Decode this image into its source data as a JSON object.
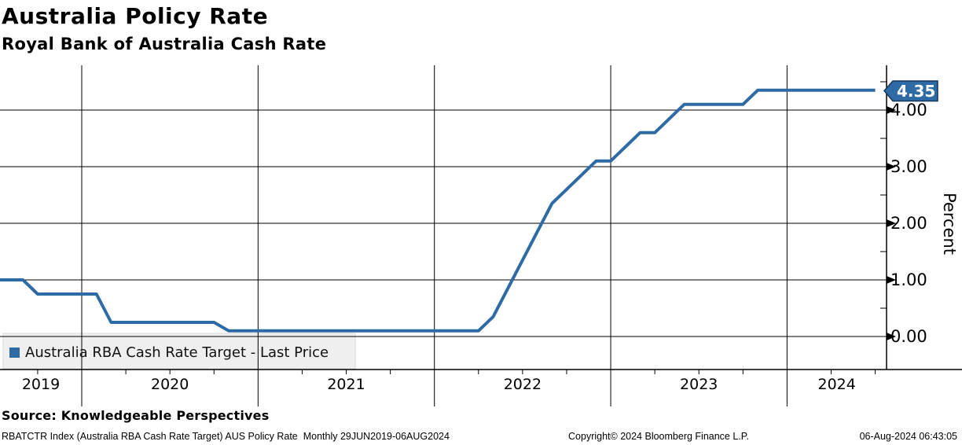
{
  "header": {
    "title": "Australia Policy Rate",
    "subtitle": "Royal Bank of Australia Cash Rate"
  },
  "chart_data": {
    "type": "line",
    "title": "Australia Policy Rate",
    "subtitle": "Royal Bank of Australia Cash Rate",
    "ylabel": "Percent",
    "ylim": [
      -0.6,
      4.8
    ],
    "grid": true,
    "legend_position": "bottom-left",
    "legend": "Australia RBA Cash Rate Target - Last Price",
    "last_price_label": "4.35",
    "last_price": 4.35,
    "y_ticks": [
      "0.00",
      "1.00",
      "2.00",
      "3.00",
      "4.00"
    ],
    "y_tick_values": [
      0,
      1,
      2,
      3,
      4
    ],
    "x_tick_labels": [
      "2019",
      "2020",
      "2021",
      "2022",
      "2023",
      "2024"
    ],
    "series": [
      {
        "name": "Australia RBA Cash Rate Target",
        "freq": "monthly",
        "months": [
          "2019-07",
          "2019-08",
          "2019-09",
          "2019-10",
          "2019-11",
          "2019-12",
          "2020-01",
          "2020-02",
          "2020-03",
          "2020-04",
          "2020-05",
          "2020-06",
          "2020-07",
          "2020-08",
          "2020-09",
          "2020-10",
          "2020-11",
          "2020-12",
          "2021-01",
          "2021-02",
          "2021-03",
          "2021-04",
          "2021-05",
          "2021-06",
          "2021-07",
          "2021-08",
          "2021-09",
          "2021-10",
          "2021-11",
          "2021-12",
          "2022-01",
          "2022-02",
          "2022-03",
          "2022-04",
          "2022-05",
          "2022-06",
          "2022-07",
          "2022-08",
          "2022-09",
          "2022-10",
          "2022-11",
          "2022-12",
          "2023-01",
          "2023-02",
          "2023-03",
          "2023-04",
          "2023-05",
          "2023-06",
          "2023-07",
          "2023-08",
          "2023-09",
          "2023-10",
          "2023-11",
          "2023-12",
          "2024-01",
          "2024-02",
          "2024-03",
          "2024-04",
          "2024-05",
          "2024-06",
          "2024-07"
        ],
        "values": [
          1.0,
          1.0,
          1.0,
          0.75,
          0.75,
          0.75,
          0.75,
          0.75,
          0.25,
          0.25,
          0.25,
          0.25,
          0.25,
          0.25,
          0.25,
          0.25,
          0.1,
          0.1,
          0.1,
          0.1,
          0.1,
          0.1,
          0.1,
          0.1,
          0.1,
          0.1,
          0.1,
          0.1,
          0.1,
          0.1,
          0.1,
          0.1,
          0.1,
          0.1,
          0.35,
          0.85,
          1.35,
          1.85,
          2.35,
          2.6,
          2.85,
          3.1,
          3.1,
          3.35,
          3.6,
          3.6,
          3.85,
          4.1,
          4.1,
          4.1,
          4.1,
          4.1,
          4.35,
          4.35,
          4.35,
          4.35,
          4.35,
          4.35,
          4.35,
          4.35,
          4.35
        ]
      }
    ]
  },
  "footer": {
    "source": "Source: Knowledgeable Perspectives",
    "meta_left": "RBATCTR Index (Australia RBA Cash Rate Target) AUS Policy Rate  Monthly 29JUN2019-06AUG2024",
    "copyright": "Copyright© 2024 Bloomberg Finance L.P.",
    "timestamp": "06-Aug-2024 06:43:05"
  },
  "colors": {
    "line": "#2e6ba4",
    "tag_bg": "#2e6ba4",
    "tag_border": "#17365d",
    "tag_text": "#ffffff",
    "legend_marker": "#2e6ba4",
    "legend_bg": "#efefef",
    "legend_border": "#d9d9d9",
    "grid": "#000000"
  }
}
